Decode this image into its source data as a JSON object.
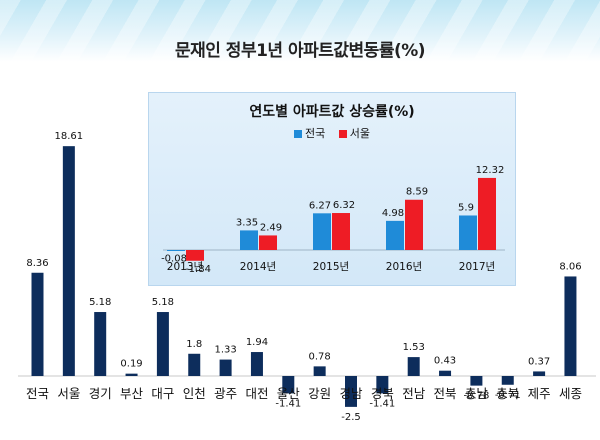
{
  "title": "문재인 정부1년 아파트값변동률(%)",
  "colors": {
    "main_bar": "#0d2d5c",
    "national": "#1f8bd8",
    "seoul": "#ee1c25"
  },
  "chart_data": [
    {
      "type": "bar",
      "title": "문재인 정부1년 아파트값변동률(%)",
      "categories": [
        "전국",
        "서울",
        "경기",
        "부산",
        "대구",
        "인천",
        "광주",
        "대전",
        "울산",
        "강원",
        "경남",
        "경북",
        "전남",
        "전북",
        "충남",
        "충북",
        "제주",
        "세종"
      ],
      "values": [
        8.36,
        18.61,
        5.18,
        0.19,
        5.18,
        1.8,
        1.33,
        1.94,
        -1.41,
        0.78,
        -2.5,
        -1.41,
        1.53,
        0.43,
        -0.78,
        -0.71,
        0.37,
        8.06
      ],
      "value_labels": [
        "8.36",
        "18.61",
        "5.18",
        "0.19",
        "5.18",
        "1.8",
        "1.33",
        "1.94",
        "-1.41",
        "0.78",
        "-2.5",
        "-1.41",
        "1.53",
        "0.43",
        "-0.78",
        "-0.71",
        "0.37",
        "8.06"
      ],
      "ylim": [
        -2.5,
        18.61
      ],
      "grid": false
    },
    {
      "type": "bar",
      "title": "연도별 아파트값 상승률(%)",
      "categories": [
        "2013년",
        "2014년",
        "2015년",
        "2016년",
        "2017년"
      ],
      "series": [
        {
          "name": "전국",
          "values": [
            -0.08,
            3.35,
            6.27,
            4.98,
            5.9
          ],
          "labels": [
            "-0.08",
            "3.35",
            "6.27",
            "4.98",
            "5.9"
          ]
        },
        {
          "name": "서울",
          "values": [
            -1.84,
            2.49,
            6.32,
            8.59,
            12.32
          ],
          "labels": [
            "-1.84",
            "2.49",
            "6.32",
            "8.59",
            "12.32"
          ]
        }
      ],
      "legend": "top-center",
      "grid": false
    }
  ]
}
